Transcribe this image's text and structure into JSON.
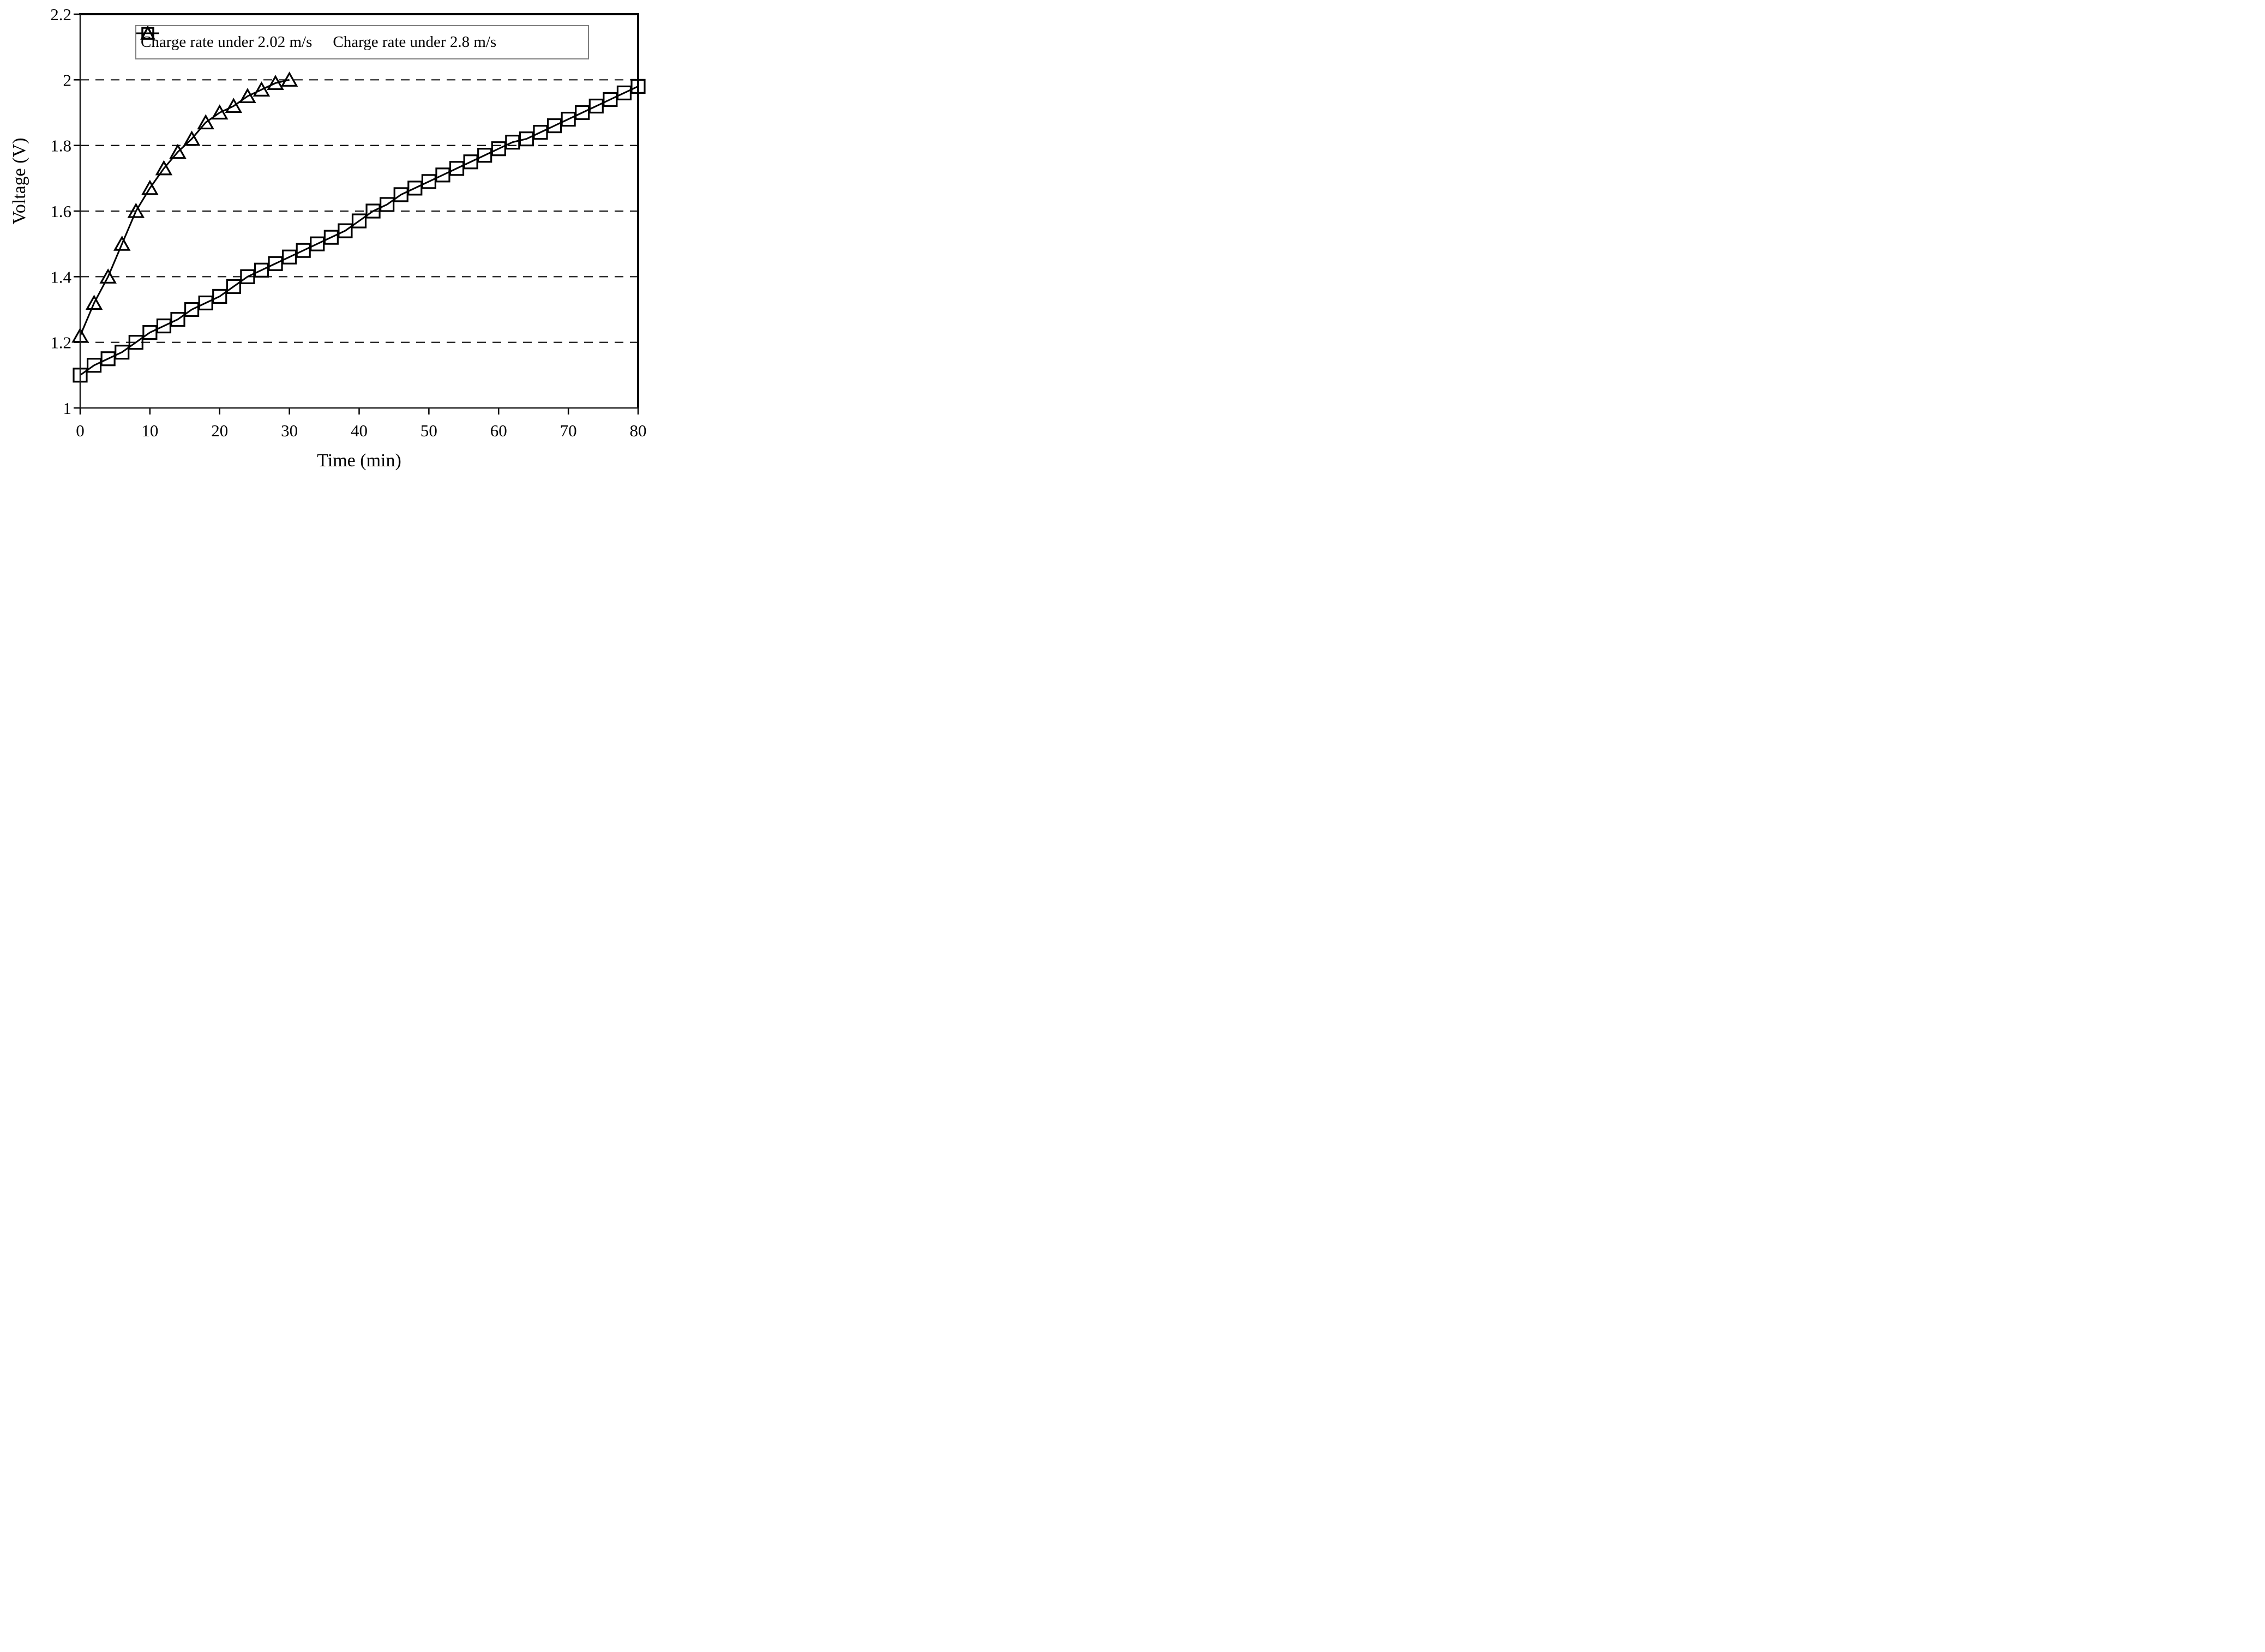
{
  "figure": {
    "background": "#ffffff"
  },
  "chart_data": {
    "type": "line",
    "title": "",
    "xlabel": "Time (min)",
    "ylabel": "Voltage (V)",
    "xlim": [
      0,
      80
    ],
    "ylim": [
      1.0,
      2.2
    ],
    "x_ticks": [
      0,
      10,
      20,
      30,
      40,
      50,
      60,
      70,
      80
    ],
    "x_tick_labels": [
      "0",
      "10",
      "20",
      "30",
      "40",
      "50",
      "60",
      "70",
      "80"
    ],
    "y_ticks": [
      1,
      1.2,
      1.4,
      1.6,
      1.8,
      2,
      2.2
    ],
    "y_tick_labels": [
      "1",
      "1.2",
      "1.4",
      "1.6",
      "1.8",
      "2",
      "2.2"
    ],
    "gridlines": {
      "y_values": [
        1.2,
        1.4,
        1.6,
        1.8,
        2.0
      ],
      "style": "dashed",
      "color": "#000000"
    },
    "grid_on": true,
    "legend": {
      "position": "top-center-inside",
      "border_color": "#7f7f7f",
      "background": "#ffffff"
    },
    "axis_color": "#000000",
    "series": [
      {
        "name": "Charge rate under 2.02 m/s",
        "marker": "square",
        "color": "#000000",
        "x": [
          0,
          2,
          4,
          6,
          8,
          10,
          12,
          14,
          16,
          18,
          20,
          22,
          24,
          26,
          28,
          30,
          32,
          34,
          36,
          38,
          40,
          42,
          44,
          46,
          48,
          50,
          52,
          54,
          56,
          58,
          60,
          62,
          64,
          66,
          68,
          70,
          72,
          74,
          76,
          78,
          80
        ],
        "values": [
          1.1,
          1.13,
          1.15,
          1.17,
          1.2,
          1.23,
          1.25,
          1.27,
          1.3,
          1.32,
          1.34,
          1.37,
          1.4,
          1.42,
          1.44,
          1.46,
          1.48,
          1.5,
          1.52,
          1.54,
          1.57,
          1.6,
          1.62,
          1.65,
          1.67,
          1.69,
          1.71,
          1.73,
          1.75,
          1.77,
          1.79,
          1.81,
          1.82,
          1.84,
          1.86,
          1.88,
          1.9,
          1.92,
          1.94,
          1.96,
          1.98
        ]
      },
      {
        "name": "Charge rate under 2.8 m/s",
        "marker": "triangle",
        "color": "#000000",
        "x": [
          0,
          2,
          4,
          6,
          8,
          10,
          12,
          14,
          16,
          18,
          20,
          22,
          24,
          26,
          28,
          30
        ],
        "values": [
          1.22,
          1.32,
          1.4,
          1.5,
          1.6,
          1.67,
          1.73,
          1.78,
          1.82,
          1.87,
          1.9,
          1.92,
          1.95,
          1.97,
          1.99,
          2.0
        ]
      }
    ]
  }
}
